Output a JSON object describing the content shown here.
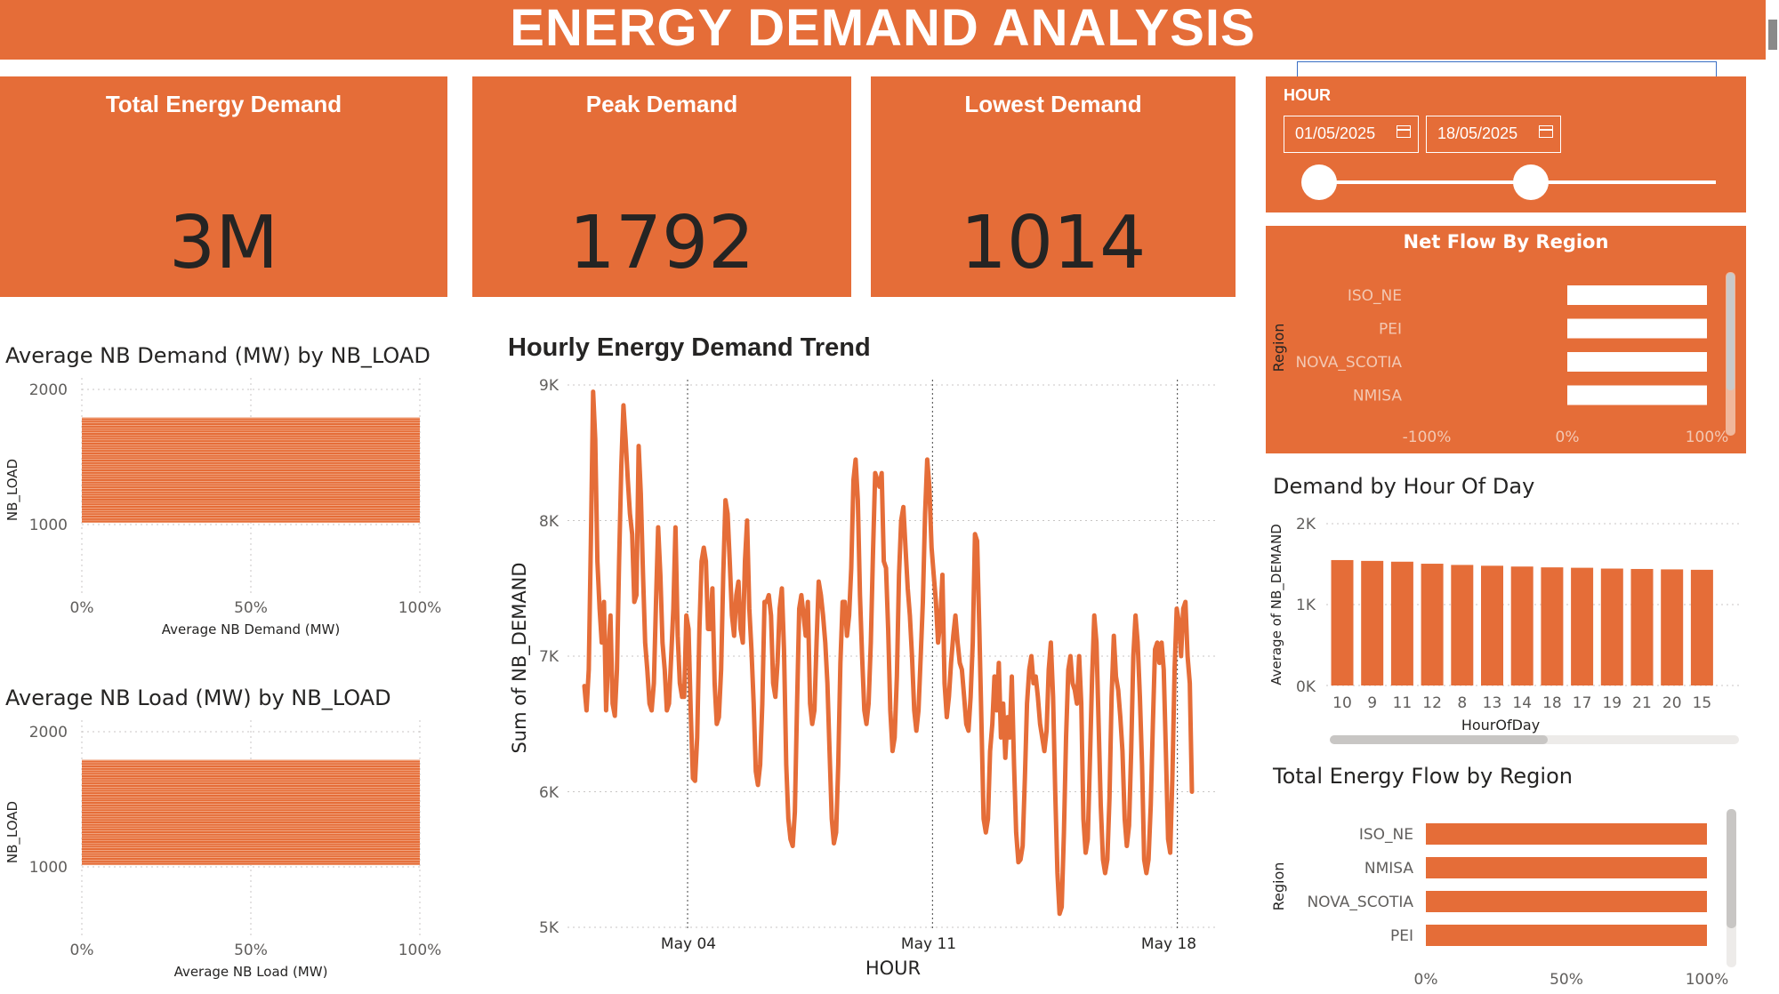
{
  "header": {
    "title": "ENERGY DEMAND ANALYSIS"
  },
  "kpis": [
    {
      "label": "Total Energy Demand",
      "value": "3M"
    },
    {
      "label": "Peak Demand",
      "value": "1792"
    },
    {
      "label": "Lowest Demand",
      "value": "1014"
    }
  ],
  "slicer": {
    "label": "HOUR",
    "start_date": "01/05/2025",
    "end_date": "18/05/2025",
    "range_fraction": [
      0.0,
      0.55
    ]
  },
  "colors": {
    "accent": "#E56D38",
    "white": "#FFFFFF",
    "text": "#252423",
    "axis": "#605E5C"
  },
  "charts": {
    "avg_demand": {
      "title": "Average NB Demand (MW) by NB_LOAD",
      "ylabel": "NB_LOAD",
      "xlabel": "Average NB Demand (MW)",
      "yticks": [
        "2000",
        "1000"
      ],
      "xticks": [
        "0%",
        "50%",
        "100%"
      ]
    },
    "avg_load": {
      "title": "Average NB Load (MW) by NB_LOAD",
      "ylabel": "NB_LOAD",
      "xlabel": "Average NB Load (MW)",
      "yticks": [
        "2000",
        "1000"
      ],
      "xticks": [
        "0%",
        "50%",
        "100%"
      ]
    },
    "trend": {
      "title": "Hourly Energy Demand Trend",
      "ylabel": "Sum of NB_DEMAND",
      "xlabel": "HOUR",
      "yticks": [
        "9K",
        "8K",
        "7K",
        "6K",
        "5K"
      ],
      "xticks": [
        "May 04",
        "May 11",
        "May 18"
      ]
    },
    "net_flow": {
      "title": "Net Flow By Region",
      "ylabel": "Region",
      "xticks": [
        "-100%",
        "0%",
        "100%"
      ]
    },
    "by_hour": {
      "title": "Demand by Hour Of Day",
      "ylabel": "Average of NB_DEMAND",
      "xlabel": "HourOfDay",
      "yticks": [
        "2K",
        "1K",
        "0K"
      ]
    },
    "total_flow": {
      "title": "Total Energy Flow by Region",
      "ylabel": "Region",
      "xticks": [
        "0%",
        "50%",
        "100%"
      ]
    }
  },
  "chart_data": [
    {
      "type": "bar",
      "title": "Average NB Demand (MW) by NB_LOAD",
      "orientation": "horizontal",
      "y_range": [
        1014,
        1792
      ],
      "values_percent": 100,
      "ylim": [
        800,
        2000
      ],
      "xlim": [
        0,
        100
      ]
    },
    {
      "type": "bar",
      "title": "Average NB Load (MW) by NB_LOAD",
      "orientation": "horizontal",
      "y_range": [
        1014,
        1792
      ],
      "values_percent": 100,
      "ylim": [
        800,
        2000
      ],
      "xlim": [
        0,
        100
      ]
    },
    {
      "type": "line",
      "title": "Hourly Energy Demand Trend",
      "xlabel": "HOUR",
      "ylabel": "Sum of NB_DEMAND",
      "ylim": [
        5000,
        9000
      ],
      "x_start": "2025-05-01",
      "x_end": "2025-05-19",
      "series": [
        {
          "values": [
            6780,
            6600,
            6900,
            7850,
            8950,
            8600,
            7700,
            7350,
            7100,
            7400,
            6600,
            7000,
            7300,
            6650,
            6560,
            6900,
            7700,
            8400,
            8850,
            8600,
            8300,
            8050,
            7900,
            7400,
            7450,
            8550,
            8200,
            7600,
            7100,
            6900,
            6650,
            6600,
            6800,
            7400,
            7950,
            7600,
            7100,
            6900,
            6600,
            6650,
            7000,
            7350,
            7950,
            7150,
            6800,
            6700,
            6700,
            7300,
            7200,
            6600,
            6100,
            6080,
            6400,
            7200,
            7700,
            7800,
            7700,
            7200,
            7200,
            7500,
            6800,
            6500,
            6550,
            6900,
            7600,
            8150,
            8050,
            7700,
            7300,
            7150,
            7450,
            7550,
            7200,
            7100,
            7700,
            8000,
            7350,
            7050,
            6650,
            6150,
            6050,
            6200,
            6650,
            7400,
            7400,
            7450,
            7300,
            6800,
            6700,
            6950,
            7350,
            7500,
            7050,
            6200,
            5800,
            5650,
            5600,
            5850,
            6650,
            7350,
            7450,
            7300,
            7150,
            7400,
            6650,
            6500,
            6600,
            7100,
            7550,
            7450,
            7300,
            7100,
            6800,
            6300,
            5800,
            5620,
            5700,
            6200,
            6950,
            7400,
            7400,
            7150,
            7300,
            7650,
            8300,
            8450,
            8150,
            7450,
            7000,
            6600,
            6500,
            6650,
            7100,
            7750,
            8350,
            8300,
            8250,
            8350,
            7700,
            7650,
            7200,
            6600,
            6300,
            6400,
            6850,
            7600,
            8000,
            8100,
            7800,
            7500,
            7300,
            7000,
            6600,
            6450,
            6600,
            7000,
            7400,
            8050,
            8450,
            8250,
            7800,
            7600,
            7400,
            7100,
            7250,
            7600,
            6800,
            6550,
            6700,
            6950,
            7150,
            7300,
            7100,
            6950,
            6900,
            6700,
            6500,
            6450,
            6700,
            7100,
            7900,
            7850,
            7200,
            6500,
            5800,
            5700,
            5800,
            6300,
            6500,
            6850,
            6600,
            6950,
            6400,
            6650,
            6250,
            6550,
            6400,
            6850,
            6200,
            5700,
            5480,
            5500,
            5600,
            6100,
            6650,
            6900,
            7000,
            6800,
            6850,
            6700,
            6500,
            6400,
            6300,
            6450,
            6900,
            7100,
            6700,
            6000,
            5400,
            5100,
            5150,
            5700,
            6400,
            6900,
            7000,
            6800,
            6750,
            6650,
            7000,
            6650,
            5800,
            5550,
            5650,
            6250,
            6850,
            7300,
            7100,
            6500,
            5900,
            5500,
            5400,
            5500,
            5950,
            6700,
            7150,
            6850,
            6750,
            6550,
            6300,
            5800,
            5600,
            5750,
            6300,
            7000,
            7300,
            7100,
            6700,
            6200,
            5500,
            5400,
            5500,
            5900,
            6500,
            7050,
            7100,
            6950,
            7100,
            6900,
            6300,
            5650,
            5550,
            6100,
            6900,
            7350,
            7250,
            7000,
            7350,
            7400,
            7000,
            6800,
            6000
          ]
        }
      ]
    },
    {
      "type": "bar",
      "title": "Net Flow By Region",
      "orientation": "horizontal",
      "categories": [
        "ISO_NE",
        "PEI",
        "NOVA_SCOTIA",
        "NMISA"
      ],
      "values": [
        100,
        100,
        100,
        100
      ],
      "xlim": [
        -100,
        100
      ]
    },
    {
      "type": "bar",
      "title": "Demand by Hour Of Day",
      "xlabel": "HourOfDay",
      "ylabel": "Average of NB_DEMAND",
      "categories": [
        "10",
        "9",
        "11",
        "12",
        "8",
        "13",
        "14",
        "18",
        "17",
        "19",
        "21",
        "20",
        "15"
      ],
      "values": [
        1550,
        1540,
        1530,
        1505,
        1490,
        1480,
        1470,
        1460,
        1455,
        1445,
        1440,
        1435,
        1430
      ],
      "ylim": [
        0,
        2000
      ]
    },
    {
      "type": "bar",
      "title": "Total Energy Flow by Region",
      "orientation": "horizontal",
      "categories": [
        "ISO_NE",
        "NMISA",
        "NOVA_SCOTIA",
        "PEI"
      ],
      "values": [
        100,
        100,
        100,
        100
      ],
      "xlim": [
        0,
        100
      ]
    }
  ]
}
